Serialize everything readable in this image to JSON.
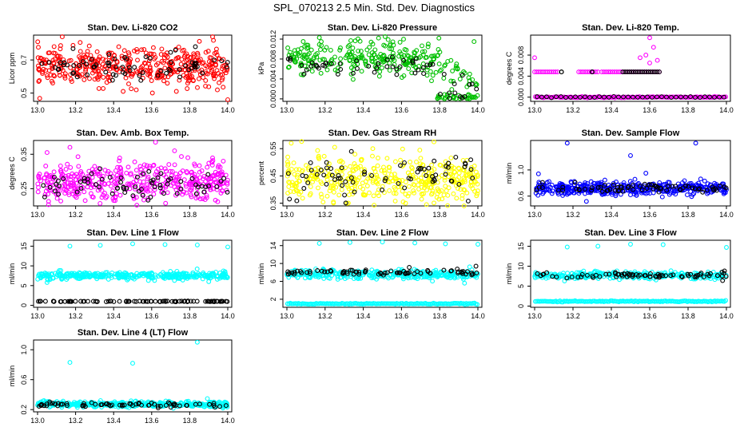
{
  "title": "SPL_070213  2.5 Min. Std. Dev. Diagnostics",
  "colors": {
    "black": "#000000"
  },
  "chart_data": [
    {
      "type": "scatter",
      "title": "Stan. Dev. Li-820 CO2",
      "ylabel": "Licor ppm",
      "xlim": [
        13.0,
        14.0
      ],
      "ylim": [
        0.45,
        0.85
      ],
      "xticks": [
        "13.0",
        "13.2",
        "13.4",
        "13.6",
        "13.8",
        "14.0"
      ],
      "yticks": [
        {
          "v": 0.5,
          "label": "0.5"
        },
        {
          "v": 0.7,
          "label": "0.7"
        }
      ],
      "color": "#ff0000",
      "series": [
        {
          "color": "#ff0000",
          "n": 420,
          "mean": 0.66,
          "spread": 0.055,
          "outliers": [
            [
              13.13,
              0.84
            ],
            [
              13.92,
              0.84
            ],
            [
              13.45,
              0.51
            ],
            [
              13.73,
              0.51
            ],
            [
              14.0,
              0.46
            ]
          ]
        },
        {
          "color": "#000000",
          "n": 70,
          "mean": 0.66,
          "spread": 0.045,
          "outliers": [
            [
              13.83,
              0.78
            ]
          ]
        }
      ]
    },
    {
      "type": "scatter",
      "title": "Stan. Dev. Li-820 Pressure",
      "ylabel": "kPa",
      "xlim": [
        13.0,
        14.0
      ],
      "ylim": [
        -0.0005,
        0.0128
      ],
      "xticks": [
        "13.0",
        "13.2",
        "13.4",
        "13.6",
        "13.8",
        "14.0"
      ],
      "yticks": [
        {
          "v": 0.0,
          "label": "0.000"
        },
        {
          "v": 0.004,
          "label": "0.004"
        },
        {
          "v": 0.008,
          "label": "0.008"
        },
        {
          "v": 0.012,
          "label": "0.012"
        }
      ],
      "color": "#00c000",
      "series": [
        {
          "color": "#00c000",
          "n": 320,
          "mean": 0.008,
          "spread": 0.0018,
          "drop_after": 13.78,
          "outliers": [
            [
              13.17,
              0.0123
            ],
            [
              13.48,
              0.0122
            ],
            [
              13.53,
              0.0119
            ],
            [
              13.98,
              0.0115
            ],
            [
              13.74,
              0.011
            ],
            [
              13.18,
              0.0115
            ]
          ]
        },
        {
          "color": "#000000",
          "n": 55,
          "mean": 0.0065,
          "spread": 0.0012,
          "drop_after": 13.78,
          "outliers": [
            [
              13.85,
              0.0012
            ],
            [
              13.88,
              0.0012
            ]
          ]
        }
      ]
    },
    {
      "type": "scatter",
      "title": "Stan. Dev. Li-820 Temp.",
      "ylabel": "degrees C",
      "xlim": [
        13.0,
        14.0
      ],
      "ylim": [
        -0.0008,
        0.0118
      ],
      "xticks": [
        "13.0",
        "13.2",
        "13.4",
        "13.6",
        "13.8",
        "14.0"
      ],
      "yticks": [
        {
          "v": 0.0,
          "label": "0.000"
        },
        {
          "v": 0.004,
          "label": "0.004"
        },
        {
          "v": 0.008,
          "label": "0.008"
        }
      ],
      "color": "#ff00ff",
      "series": [
        {
          "color": "#ff00ff",
          "n": 0,
          "mean": 0.0,
          "spread": 0.0,
          "baseline": 0.0,
          "baseline_n": 140,
          "level": 0.0048,
          "level_ranges": [
            [
              13.0,
              13.12
            ],
            [
              13.23,
              13.33
            ],
            [
              13.35,
              13.44
            ],
            [
              13.45,
              13.65
            ]
          ],
          "outliers": [
            [
              13.6,
              0.0113
            ],
            [
              13.62,
              0.0095
            ],
            [
              13.58,
              0.008
            ],
            [
              13.55,
              0.0075
            ],
            [
              13.64,
              0.007
            ],
            [
              13.6,
              0.0065
            ],
            [
              13.0,
              0.0075
            ]
          ]
        },
        {
          "color": "#000000",
          "n": 0,
          "mean": 0.0,
          "spread": 0.0,
          "baseline": 0.0,
          "baseline_n": 40,
          "level": 0.0048,
          "level_ranges": [
            [
              13.14,
              13.14
            ],
            [
              13.3,
              13.3
            ],
            [
              13.46,
              13.65
            ]
          ],
          "outliers": []
        }
      ]
    },
    {
      "type": "scatter",
      "title": "Stan. Dev. Amb. Box Temp.",
      "ylabel": "degrees C",
      "xlim": [
        13.0,
        14.0
      ],
      "ylim": [
        0.2,
        0.39
      ],
      "xticks": [
        "13.0",
        "13.2",
        "13.4",
        "13.6",
        "13.8",
        "14.0"
      ],
      "yticks": [
        {
          "v": 0.25,
          "label": "0.25"
        },
        {
          "v": 0.35,
          "label": "0.35"
        }
      ],
      "color": "#ff00ff",
      "series": [
        {
          "color": "#ff00ff",
          "n": 420,
          "mean": 0.27,
          "spread": 0.028,
          "outliers": [
            [
              13.62,
              0.385
            ],
            [
              13.72,
              0.36
            ],
            [
              13.05,
              0.355
            ],
            [
              13.17,
              0.37
            ]
          ]
        },
        {
          "color": "#000000",
          "n": 70,
          "mean": 0.26,
          "spread": 0.02,
          "outliers": []
        }
      ]
    },
    {
      "type": "scatter",
      "title": "Stan. Dev. Gas Stream RH",
      "ylabel": "percent",
      "xlim": [
        13.0,
        14.0
      ],
      "ylim": [
        0.34,
        0.58
      ],
      "xticks": [
        "13.0",
        "13.2",
        "13.4",
        "13.6",
        "13.8",
        "14.0"
      ],
      "yticks": [
        {
          "v": 0.35,
          "label": "0.35"
        },
        {
          "v": 0.45,
          "label": "0.45"
        },
        {
          "v": 0.55,
          "label": "0.55"
        }
      ],
      "color": "#ffff00",
      "series": [
        {
          "color": "#ffff00",
          "n": 420,
          "mean": 0.44,
          "spread": 0.04,
          "outliers": [
            [
              13.77,
              0.575
            ],
            [
              13.25,
              0.555
            ],
            [
              13.45,
              0.55
            ]
          ]
        },
        {
          "color": "#000000",
          "n": 70,
          "mean": 0.44,
          "spread": 0.035,
          "outliers": []
        }
      ]
    },
    {
      "type": "scatter",
      "title": "Stan. Dev. Sample Flow",
      "ylabel": "ml/min",
      "xlim": [
        13.0,
        14.0
      ],
      "ylim": [
        0.45,
        1.45
      ],
      "xticks": [
        "13.0",
        "13.2",
        "13.4",
        "13.6",
        "13.8",
        "14.0"
      ],
      "yticks": [
        {
          "v": 0.6,
          "label": "0.6"
        },
        {
          "v": 1.0,
          "label": "1.0"
        }
      ],
      "color": "#0000ff",
      "series": [
        {
          "color": "#0000ff",
          "n": 420,
          "mean": 0.72,
          "spread": 0.05,
          "outliers": [
            [
              13.17,
              1.41
            ],
            [
              13.84,
              1.41
            ],
            [
              13.5,
              1.22
            ],
            [
              13.02,
              0.94
            ],
            [
              13.27,
              0.52
            ],
            [
              13.58,
              0.95
            ]
          ]
        },
        {
          "color": "#000000",
          "n": 70,
          "mean": 0.72,
          "spread": 0.035,
          "outliers": []
        }
      ]
    },
    {
      "type": "scatter",
      "title": "Stan. Dev. Line 1 Flow",
      "ylabel": "ml/min",
      "xlim": [
        13.0,
        14.0
      ],
      "ylim": [
        -0.5,
        16.5
      ],
      "xticks": [
        "13.0",
        "13.2",
        "13.4",
        "13.6",
        "13.8",
        "14.0"
      ],
      "yticks": [
        {
          "v": 0,
          "label": "0"
        },
        {
          "v": 5,
          "label": "5"
        },
        {
          "v": 10,
          "label": "10"
        },
        {
          "v": 15,
          "label": "15"
        }
      ],
      "color": "#00ffff",
      "series": [
        {
          "color": "#00ffff",
          "n": 380,
          "mean": 7.5,
          "spread": 0.45,
          "outliers": [
            [
              13.17,
              15.0
            ],
            [
              13.33,
              15.2
            ],
            [
              13.5,
              15.6
            ],
            [
              13.67,
              15.4
            ],
            [
              13.84,
              15.3
            ],
            [
              14.0,
              14.8
            ],
            [
              13.05,
              5.8
            ],
            [
              13.9,
              6.0
            ]
          ]
        },
        {
          "color": "#000000",
          "n": 90,
          "mean": 1.0,
          "spread": 0.04,
          "outliers": []
        }
      ]
    },
    {
      "type": "scatter",
      "title": "Stan. Dev. Line 2 Flow",
      "ylabel": "ml/min",
      "xlim": [
        13.0,
        14.0
      ],
      "ylim": [
        0.2,
        15.2
      ],
      "xticks": [
        "13.0",
        "13.2",
        "13.4",
        "13.6",
        "13.8",
        "14.0"
      ],
      "yticks": [
        {
          "v": 2,
          "label": "2"
        },
        {
          "v": 6,
          "label": "6"
        },
        {
          "v": 10,
          "label": "10"
        },
        {
          "v": 14,
          "label": "14"
        }
      ],
      "color": "#00ffff",
      "series": [
        {
          "color": "#00ffff",
          "n": 330,
          "mean": 7.6,
          "spread": 0.5,
          "baseline": 1.0,
          "baseline_n": 140,
          "outliers": [
            [
              13.17,
              14.5
            ],
            [
              13.33,
              14.7
            ],
            [
              13.5,
              14.8
            ],
            [
              13.67,
              14.6
            ],
            [
              13.83,
              14.4
            ],
            [
              14.0,
              14.3
            ],
            [
              13.93,
              5.6
            ]
          ]
        },
        {
          "color": "#000000",
          "n": 75,
          "mean": 8.0,
          "spread": 0.3,
          "outliers": [
            [
              13.99,
              9.4
            ]
          ]
        }
      ]
    },
    {
      "type": "scatter",
      "title": "Stan. Dev. Line 3 Flow",
      "ylabel": "ml/min",
      "xlim": [
        13.0,
        14.0
      ],
      "ylim": [
        -0.3,
        16.5
      ],
      "xticks": [
        "13.0",
        "13.2",
        "13.4",
        "13.6",
        "13.8",
        "14.0"
      ],
      "yticks": [
        {
          "v": 0,
          "label": "0"
        },
        {
          "v": 5,
          "label": "5"
        },
        {
          "v": 10,
          "label": "10"
        },
        {
          "v": 15,
          "label": "15"
        }
      ],
      "color": "#00ffff",
      "series": [
        {
          "color": "#00ffff",
          "n": 330,
          "mean": 7.7,
          "spread": 0.45,
          "baseline": 1.2,
          "baseline_n": 140,
          "outliers": [
            [
              13.17,
              14.8
            ],
            [
              13.5,
              15.5
            ],
            [
              13.67,
              15.4
            ],
            [
              14.0,
              14.7
            ],
            [
              13.33,
              15.0
            ]
          ]
        },
        {
          "color": "#000000",
          "n": 75,
          "mean": 7.8,
          "spread": 0.3,
          "outliers": [
            [
              13.99,
              8.8
            ],
            [
              13.98,
              6.4
            ]
          ]
        }
      ]
    },
    {
      "type": "scatter",
      "title": "Stan. Dev. Line 4 (LT) Flow",
      "ylabel": "ml/min",
      "xlim": [
        13.0,
        14.0
      ],
      "ylim": [
        0.17,
        1.13
      ],
      "xticks": [
        "13.0",
        "13.2",
        "13.4",
        "13.6",
        "13.8",
        "14.0"
      ],
      "yticks": [
        {
          "v": 0.2,
          "label": "0.2"
        },
        {
          "v": 0.6,
          "label": "0.6"
        },
        {
          "v": 1.0,
          "label": "1.0"
        }
      ],
      "color": "#00ffff",
      "series": [
        {
          "color": "#00ffff",
          "n": 420,
          "mean": 0.27,
          "spread": 0.018,
          "outliers": [
            [
              13.84,
              1.1
            ],
            [
              13.17,
              0.83
            ],
            [
              13.5,
              0.82
            ]
          ]
        },
        {
          "color": "#000000",
          "n": 70,
          "mean": 0.265,
          "spread": 0.015,
          "outliers": []
        }
      ]
    }
  ]
}
